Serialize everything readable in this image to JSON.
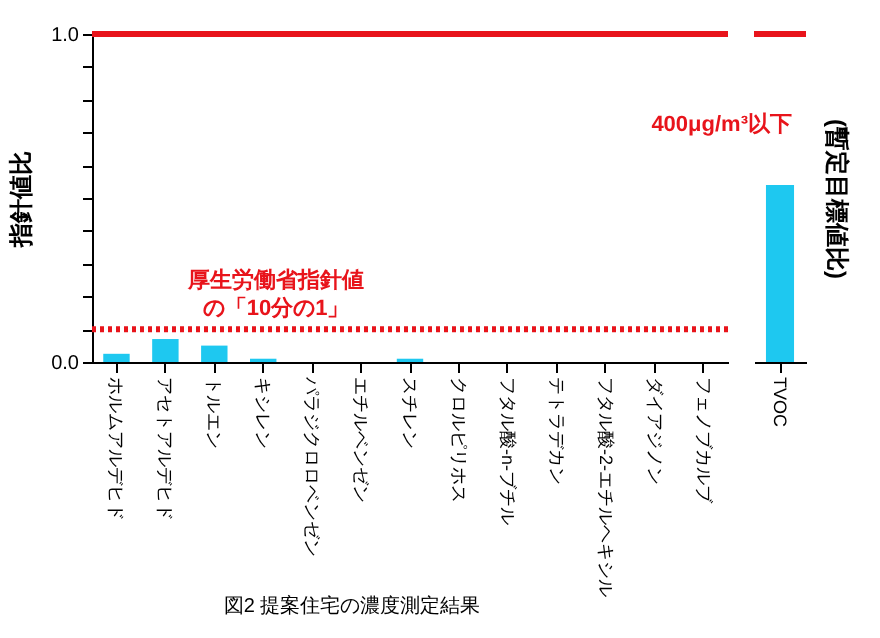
{
  "chart_data": [
    {
      "type": "bar",
      "ylabel": "指針値比",
      "categories": [
        "ホルムアルデヒド",
        "アセトアルデヒド",
        "トルエン",
        "キシレン",
        "パラジクロロベンゼン",
        "エチルベンゼン",
        "スチレン",
        "クロルピリホス",
        "フタル酸-n-ブチル",
        "テトラデカン",
        "フタル酸-2-エチルヘキシル",
        "ダイアジノン",
        "フェノブカルブ"
      ],
      "values": [
        0.025,
        0.07,
        0.05,
        0.01,
        0,
        0,
        0.01,
        0,
        0,
        0,
        0,
        0,
        0
      ],
      "color": "#1ec8f0",
      "ylim": [
        0,
        1
      ],
      "yticks": [
        {
          "value": 0,
          "label": "0.0"
        },
        {
          "value": 0.1,
          "label": null
        },
        {
          "value": 0.2,
          "label": null
        },
        {
          "value": 0.3,
          "label": null
        },
        {
          "value": 0.4,
          "label": null
        },
        {
          "value": 0.5,
          "label": null
        },
        {
          "value": 0.6,
          "label": null
        },
        {
          "value": 0.7,
          "label": null
        },
        {
          "value": 0.8,
          "label": null
        },
        {
          "value": 0.9,
          "label": null
        },
        {
          "value": 1,
          "label": "1.0"
        }
      ],
      "ref_lines": [
        {
          "axis": "y",
          "value": 1,
          "color": "#e8141b",
          "line_style": "solid"
        },
        {
          "axis": "y",
          "value": 0.1,
          "color": "#e8141b",
          "line_style": "dotted",
          "label": "厚生労働省指針値の「10分の1」"
        }
      ],
      "annotations": [
        "図2 提案住宅の濃度測定結果"
      ]
    },
    {
      "type": "bar",
      "ylabel": "(暫定目標値比)",
      "categories": [
        "TVOC"
      ],
      "values": [
        0.54
      ],
      "color": "#1ec8f0",
      "ylim": [
        0,
        1
      ],
      "tick_labels": "x",
      "ref_lines": [
        {
          "axis": "y",
          "value": 1,
          "color": "#e8141b",
          "line_style": "solid"
        }
      ],
      "annotations": [
        {
          "text": "400μg/m³以下",
          "x": "TVOC",
          "y": 0.54
        }
      ]
    }
  ]
}
